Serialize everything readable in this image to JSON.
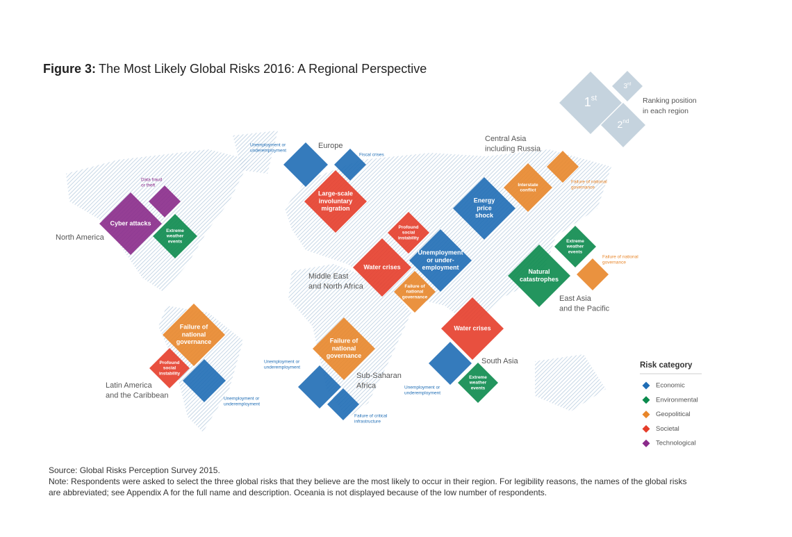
{
  "header": {
    "figure": "Figure 3:",
    "title": "The Most Likely Global Risks 2016: A Regional Perspective"
  },
  "ranking_key": {
    "first": [
      "1",
      "st"
    ],
    "second": [
      "2",
      "nd"
    ],
    "third": [
      "3",
      "rd"
    ],
    "caption": [
      "Ranking position",
      "in each region"
    ]
  },
  "legend": {
    "title": "Risk category",
    "items": [
      {
        "label": "Economic",
        "color": "#1f6db5"
      },
      {
        "label": "Environmental",
        "color": "#0b8a4d"
      },
      {
        "label": "Geopolitical",
        "color": "#e8862a"
      },
      {
        "label": "Societal",
        "color": "#e53d2a"
      },
      {
        "label": "Technological",
        "color": "#8a2a8a"
      }
    ]
  },
  "regions": [
    {
      "label": [
        "North America"
      ],
      "first": [
        {
          "name": [
            "Cyber attacks"
          ],
          "category": "Technological"
        }
      ],
      "second": [
        {
          "name": [
            "Extreme",
            "weather",
            "events"
          ],
          "category": "Environmental"
        }
      ],
      "third": [
        {
          "name": [
            "Data fraud",
            "or theft"
          ],
          "category": "Technological"
        }
      ]
    },
    {
      "label": [
        "Europe"
      ],
      "first": [
        {
          "name": [
            "Large-scale",
            "involuntary",
            "migration"
          ],
          "category": "Societal"
        }
      ],
      "second": [
        {
          "name": [
            "Unemployment or",
            "underemployment"
          ],
          "category": "Economic"
        }
      ],
      "third": [
        {
          "name": [
            "Fiscal crises"
          ],
          "category": "Economic"
        }
      ]
    },
    {
      "label": [
        "Central Asia",
        "including Russia"
      ],
      "first": [
        {
          "name": [
            "Energy",
            "price",
            "shock"
          ],
          "category": "Economic"
        }
      ],
      "second": [
        {
          "name": [
            "Interstate",
            "conflict"
          ],
          "category": "Geopolitical"
        }
      ],
      "third": [
        {
          "name": [
            "Failure of national",
            "governance"
          ],
          "category": "Geopolitical"
        }
      ]
    },
    {
      "label": [
        "Middle East",
        "and North Africa"
      ],
      "first": [
        {
          "name": [
            "Water crises"
          ],
          "category": "Societal"
        },
        {
          "name": [
            "Unemployment",
            "or under-",
            "employment"
          ],
          "category": "Economic"
        }
      ],
      "second": [
        {
          "name": [
            "Profound",
            "social",
            "instability"
          ],
          "category": "Societal"
        },
        {
          "name": [
            "Failure of",
            "national",
            "governance"
          ],
          "category": "Geopolitical"
        }
      ],
      "third": []
    },
    {
      "label": [
        "East Asia",
        "and the Pacific"
      ],
      "first": [
        {
          "name": [
            "Natural",
            "catastrophes"
          ],
          "category": "Environmental"
        }
      ],
      "second": [
        {
          "name": [
            "Extreme",
            "weather",
            "events"
          ],
          "category": "Environmental"
        }
      ],
      "third": [
        {
          "name": [
            "Failure of national",
            "governance"
          ],
          "category": "Geopolitical"
        }
      ]
    },
    {
      "label": [
        "South Asia"
      ],
      "first": [
        {
          "name": [
            "Water crises"
          ],
          "category": "Societal"
        }
      ],
      "second": [
        {
          "name": [
            "Unemployment or",
            "underemployment"
          ],
          "category": "Economic"
        }
      ],
      "third": [
        {
          "name": [
            "Extreme",
            "weather",
            "events"
          ],
          "category": "Environmental"
        }
      ]
    },
    {
      "label": [
        "Sub-Saharan",
        "Africa"
      ],
      "first": [
        {
          "name": [
            "Failure of",
            "national",
            "governance"
          ],
          "category": "Geopolitical"
        }
      ],
      "second": [
        {
          "name": [
            "Unemployment or",
            "underemployment"
          ],
          "category": "Economic"
        }
      ],
      "third": [
        {
          "name": [
            "Failure of critical",
            "infrastructure"
          ],
          "category": "Economic"
        }
      ]
    },
    {
      "label": [
        "Latin America",
        "and the Caribbean"
      ],
      "first": [
        {
          "name": [
            "Failure of",
            "national",
            "governance"
          ],
          "category": "Geopolitical"
        }
      ],
      "second": [
        {
          "name": [
            "Unemployment or",
            "underemployment"
          ],
          "category": "Economic"
        }
      ],
      "third": [
        {
          "name": [
            "Profound",
            "social",
            "instability"
          ],
          "category": "Societal"
        }
      ]
    }
  ],
  "footer": {
    "source": "Source: Global Risks Perception Survey 2015.",
    "note": [
      "Note: Respondents were asked to select the three global risks that they believe are the most likely to occur in their region. For legibility reasons, the names of the global risks",
      "are abbreviated; see Appendix A for the full name and description. Oceania is not displayed because of the low number of respondents."
    ]
  }
}
